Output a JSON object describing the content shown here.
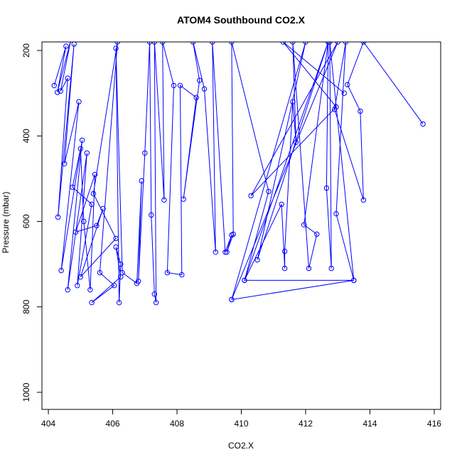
{
  "chart_data": {
    "type": "line",
    "title": "ATOM4 Southbound CO2.X",
    "xlabel": "CO2.X",
    "ylabel": "Pressure (mbar)",
    "xlim": [
      403.8,
      416.2
    ],
    "ylim": [
      1040,
      180
    ],
    "y_reversed": true,
    "x_ticks": [
      404,
      406,
      408,
      410,
      412,
      414,
      416
    ],
    "y_ticks": [
      200,
      400,
      600,
      800,
      1000
    ],
    "grid": false,
    "legend": "none",
    "color": "#0000ff",
    "series": [
      {
        "x": [
          404.18,
          404.55,
          404.28,
          404.7,
          404.38,
          404.6,
          404.3,
          404.8,
          404.5,
          404.95,
          404.4,
          405.05,
          404.6,
          405.2,
          404.9,
          405.35,
          404.75,
          405.0,
          405.1,
          405.3,
          405.45,
          404.85,
          405.5,
          405.7,
          405.0,
          406.1,
          405.4,
          406.15,
          405.6,
          406.05,
          405.35,
          406.25,
          406.1,
          406.25,
          406.2,
          406.1,
          406.3,
          406.75,
          406.9,
          406.8,
          407.0,
          407.15,
          407.2,
          407.3,
          407.35,
          407.3,
          407.6,
          407.55,
          407.9,
          407.7,
          408.15,
          408.1,
          408.6,
          408.2,
          408.7,
          408.5,
          408.85,
          409.2,
          409.1,
          409.5,
          409.7,
          409.55,
          409.75,
          409.7,
          410.85,
          410.1,
          411.25,
          411.35,
          411.35,
          411.6,
          411.7,
          411.6,
          412.1,
          412.35,
          411.95,
          412.7,
          412.65,
          412.8,
          412.75,
          413.5,
          412.95,
          413.25,
          412.9,
          413.8,
          413.7,
          413.3,
          413.8,
          415.65
        ],
        "y": [
          282,
          190,
          298,
          175,
          295,
          265,
          590,
          185,
          465,
          320,
          715,
          410,
          760,
          440,
          750,
          560,
          520,
          430,
          600,
          760,
          490,
          625,
          610,
          570,
          730,
          640,
          535,
          180,
          720,
          750,
          790,
          730,
          660,
          700,
          790,
          195,
          720,
          745,
          505,
          740,
          440,
          180,
          585,
          770,
          790,
          180,
          550,
          180,
          282,
          720,
          725,
          282,
          310,
          548,
          270,
          180,
          290,
          672,
          180,
          672,
          632,
          672,
          630,
          180,
          530,
          738,
          560,
          710,
          670,
          320,
          415,
          180,
          710,
          630,
          608,
          180,
          522,
          710,
          180,
          738,
          582,
          180,
          338,
          550,
          342,
          280,
          180,
          372
        ]
      },
      {
        "x": [
          409.7,
          413.5,
          410.1,
          412.7,
          410.5,
          412.0,
          409.7,
          413.0,
          410.3,
          412.95,
          411.3,
          413.2
        ],
        "y": [
          783,
          738,
          738,
          180,
          690,
          180,
          783,
          180,
          540,
          332,
          180,
          300
        ]
      }
    ]
  }
}
